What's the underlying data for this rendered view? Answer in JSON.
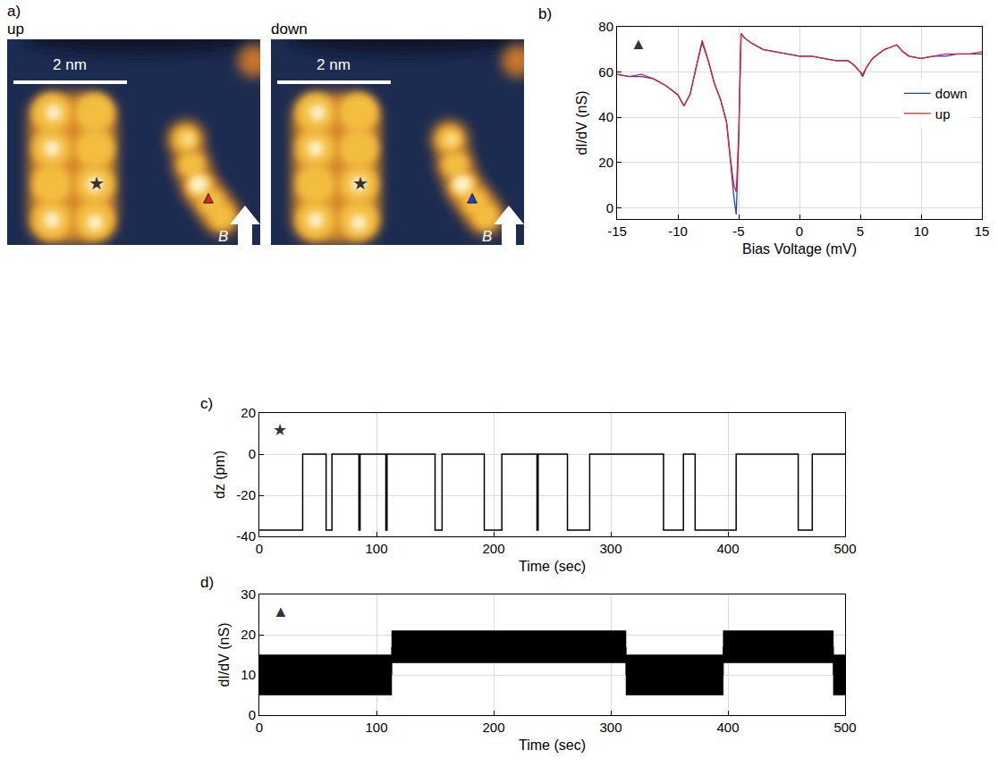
{
  "figure_a": {
    "label": "a)",
    "scale_bar": "2 nm",
    "field": "B",
    "star": "★",
    "triangle": "▲",
    "images": [
      {
        "title": "up",
        "marker_color": "#e8211e"
      },
      {
        "title": "down",
        "marker_color": "#1d3fd6"
      }
    ]
  },
  "chart_data": [
    {
      "label": "b)",
      "symbol": "▲",
      "type": "line",
      "x": [
        -15,
        -14,
        -13,
        -12,
        -11,
        -10,
        -9.5,
        -9,
        -8.5,
        -8,
        -7.5,
        -7,
        -6.5,
        -6,
        -5.7,
        -5.4,
        -5.2,
        -5,
        -4.8,
        -4.5,
        -4,
        -3,
        -2,
        -1,
        0,
        1,
        2,
        3,
        4,
        4.5,
        5,
        5.2,
        5.5,
        6,
        6.5,
        7,
        7.5,
        8,
        8.5,
        9,
        10,
        11,
        12,
        13,
        14,
        15
      ],
      "series": [
        {
          "name": "down",
          "color": "#1f3fe0",
          "values": [
            59,
            58,
            58,
            57,
            54,
            50,
            45,
            50,
            62,
            73,
            65,
            55,
            48,
            38,
            22,
            5,
            -3,
            30,
            77,
            75,
            73,
            70,
            69,
            68,
            67,
            67,
            66,
            65,
            65,
            63,
            60,
            58,
            62,
            66,
            68,
            70,
            71,
            72,
            69,
            67,
            66,
            67,
            67,
            68,
            68,
            68
          ]
        },
        {
          "name": "up",
          "color": "#e8211e",
          "values": [
            59,
            58,
            59,
            57,
            54,
            50,
            45,
            50,
            62,
            74,
            65,
            55,
            48,
            38,
            23,
            10,
            7,
            32,
            77,
            75,
            73,
            70,
            69,
            68,
            67,
            67,
            66,
            65,
            65,
            63,
            60,
            59,
            62,
            66,
            68,
            70,
            71,
            72,
            69,
            67,
            66,
            67,
            68,
            68,
            68,
            69
          ]
        }
      ],
      "xlabel": "Bias Voltage (mV)",
      "ylabel": "dI/dV (nS)",
      "xlim": [
        -15,
        15
      ],
      "xticks": [
        -15,
        -10,
        -5,
        0,
        5,
        10,
        15
      ],
      "ylim": [
        -5,
        80
      ],
      "yticks": [
        0,
        20,
        40,
        60,
        80
      ],
      "grid": true,
      "legend": "right"
    },
    {
      "label": "c)",
      "symbol": "★",
      "type": "line",
      "line_style": "step",
      "color": "#000000",
      "x": [
        0,
        37,
        57,
        62,
        85,
        86,
        108,
        109,
        150,
        156,
        192,
        207,
        237,
        238,
        263,
        282,
        345,
        362,
        372,
        407,
        460,
        472,
        500
      ],
      "values": [
        -37,
        0,
        -37,
        0,
        -37,
        0,
        -37,
        0,
        -37,
        0,
        -37,
        0,
        -37,
        0,
        -37,
        0,
        -37,
        0,
        -37,
        0,
        -37,
        0,
        0
      ],
      "xlabel": "Time (sec)",
      "ylabel": "dz (pm)",
      "xlim": [
        0,
        500
      ],
      "xticks": [
        0,
        100,
        200,
        300,
        400,
        500
      ],
      "ylim": [
        -40,
        20
      ],
      "yticks": [
        -40,
        -20,
        0,
        20
      ],
      "grid": true
    },
    {
      "label": "d)",
      "symbol": "▲",
      "type": "band",
      "line_style": "step",
      "color": "#000000",
      "x": [
        0,
        113,
        313,
        396,
        490,
        500
      ],
      "values": [
        10,
        17,
        10,
        17,
        10,
        10
      ],
      "low": [
        5,
        13,
        5,
        13,
        5,
        5
      ],
      "high": [
        15,
        21,
        15,
        21,
        15,
        15
      ],
      "xlabel": "Time (sec)",
      "ylabel": "dI/dV (nS)",
      "xlim": [
        0,
        500
      ],
      "xticks": [
        0,
        100,
        200,
        300,
        400,
        500
      ],
      "ylim": [
        0,
        30
      ],
      "yticks": [
        0,
        10,
        20,
        30
      ],
      "grid": true
    }
  ]
}
